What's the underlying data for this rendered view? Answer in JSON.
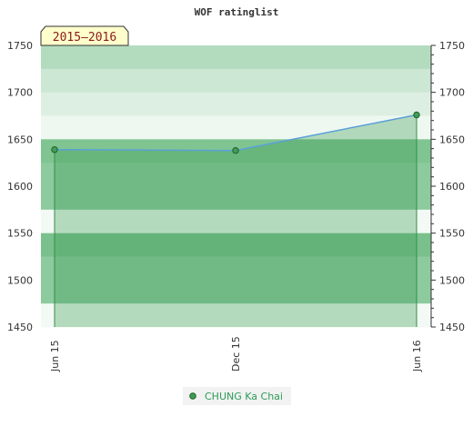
{
  "chart_data": {
    "type": "area",
    "title": "WOF ratinglist",
    "season_label": "2015–2016",
    "ylim": [
      1450,
      1750
    ],
    "y_ticks": [
      1450,
      1500,
      1550,
      1600,
      1650,
      1700,
      1750
    ],
    "y_tick_labels": [
      "1450",
      "1500",
      "1550",
      "1600",
      "1650",
      "1700",
      "1750"
    ],
    "x_labels": [
      "Jun 15",
      "Dec 15",
      "Jun 16"
    ],
    "series": [
      {
        "name": "CHUNG Ka Chai",
        "values": [
          1639,
          1638,
          1676
        ]
      }
    ],
    "legend_position": "bottom-center",
    "colors": {
      "line": "#5aa0d8",
      "fill": "#3f9e55",
      "marker": "#3f9e55",
      "legend_text": "#2e9b5a",
      "season_box_bg": "#ffffcc",
      "season_text": "#8b1a1a"
    }
  }
}
